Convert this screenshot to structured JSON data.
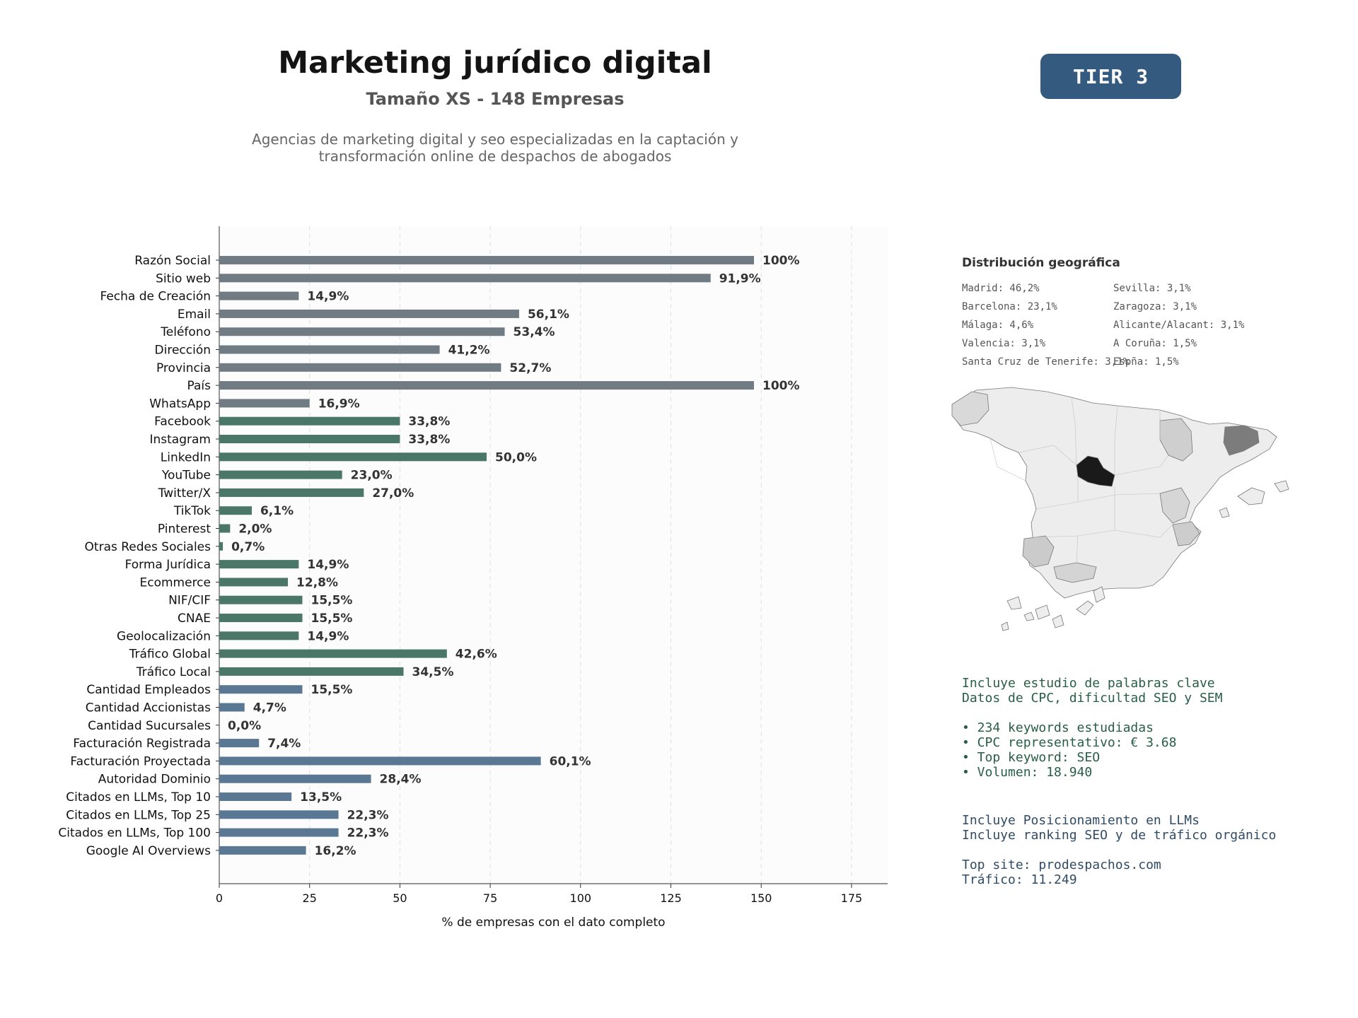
{
  "header": {
    "title": "Marketing jurídico digital",
    "subtitle": "Tamaño XS - 148 Empresas",
    "description_line1": "Agencias de marketing digital y seo especializadas en la captación y",
    "description_line2": "transformación online de despachos de abogados",
    "tier": "TIER 3"
  },
  "chart_data": {
    "type": "bar",
    "orientation": "horizontal",
    "xlabel": "% de empresas con el dato completo",
    "xlim": [
      0,
      185
    ],
    "xticks": [
      0,
      25,
      50,
      75,
      100,
      125,
      150,
      175
    ],
    "grid": true,
    "colors": {
      "gray": "#707b84",
      "green": "#4a7767",
      "blue": "#5a7894",
      "label": "#333333"
    },
    "categories": [
      "Razón Social",
      "Sitio web",
      "Fecha de Creación",
      "Email",
      "Teléfono",
      "Dirección",
      "Provincia",
      "País",
      "WhatsApp",
      "Facebook",
      "Instagram",
      "LinkedIn",
      "YouTube",
      "Twitter/X",
      "TikTok",
      "Pinterest",
      "Otras Redes Sociales",
      "Forma Jurídica",
      "Ecommerce",
      "NIF/CIF",
      "CNAE",
      "Geolocalización",
      "Tráfico Global",
      "Tráfico Local",
      "Cantidad Empleados",
      "Cantidad Accionistas",
      "Cantidad Sucursales",
      "Facturación Registrada",
      "Facturación Proyectada",
      "Autoridad Dominio",
      "Citados en LLMs, Top 10",
      "Citados en LLMs, Top 25",
      "Citados en LLMs, Top 100",
      "Google AI Overviews"
    ],
    "values": [
      148,
      136,
      22,
      83,
      79,
      61,
      78,
      148,
      25,
      50,
      50,
      74,
      34,
      40,
      9,
      3,
      1,
      22,
      19,
      23,
      23,
      22,
      63,
      51,
      23,
      7,
      0,
      11,
      89,
      42,
      20,
      33,
      33,
      24
    ],
    "labels": [
      "100%",
      "91,9%",
      "14,9%",
      "56,1%",
      "53,4%",
      "41,2%",
      "52,7%",
      "100%",
      "16,9%",
      "33,8%",
      "33,8%",
      "50,0%",
      "23,0%",
      "27,0%",
      "6,1%",
      "2,0%",
      "0,7%",
      "14,9%",
      "12,8%",
      "15,5%",
      "15,5%",
      "14,9%",
      "42,6%",
      "34,5%",
      "15,5%",
      "4,7%",
      "0,0%",
      "7,4%",
      "60,1%",
      "28,4%",
      "13,5%",
      "22,3%",
      "22,3%",
      "16,2%"
    ],
    "groups": [
      "gray",
      "gray",
      "gray",
      "gray",
      "gray",
      "gray",
      "gray",
      "gray",
      "gray",
      "green",
      "green",
      "green",
      "green",
      "green",
      "green",
      "green",
      "green",
      "green",
      "green",
      "green",
      "green",
      "green",
      "green",
      "green",
      "blue",
      "blue",
      "blue",
      "blue",
      "blue",
      "blue",
      "blue",
      "blue",
      "blue",
      "blue"
    ]
  },
  "geo": {
    "title": "Distribución geográfica",
    "col1": [
      "Madrid: 46,2%",
      "Barcelona: 23,1%",
      "Málaga: 4,6%",
      "Valencia: 3,1%",
      "Santa Cruz de Tenerife: 3,1%"
    ],
    "col2": [
      "Sevilla: 3,1%",
      "Zaragoza: 3,1%",
      "Alicante/Alacant: 3,1%",
      "A Coruña: 1,5%",
      "Espña: 1,5%"
    ]
  },
  "seo_info": {
    "line1": "Incluye estudio de palabras clave",
    "line2": "Datos de CPC, dificultad SEO y SEM",
    "bullet1": "• 234 keywords estudiadas",
    "bullet2": "• CPC representativo: € 3.68",
    "bullet3": "• Top keyword: SEO",
    "bullet4": "• Volumen: 18.940"
  },
  "llm_info": {
    "line1": "Incluye Posicionamiento en LLMs",
    "line2": "Incluye ranking SEO y de tráfico orgánico",
    "top_site": "Top site: prodespachos.com",
    "traffic": "Tráfico: 11.249"
  }
}
